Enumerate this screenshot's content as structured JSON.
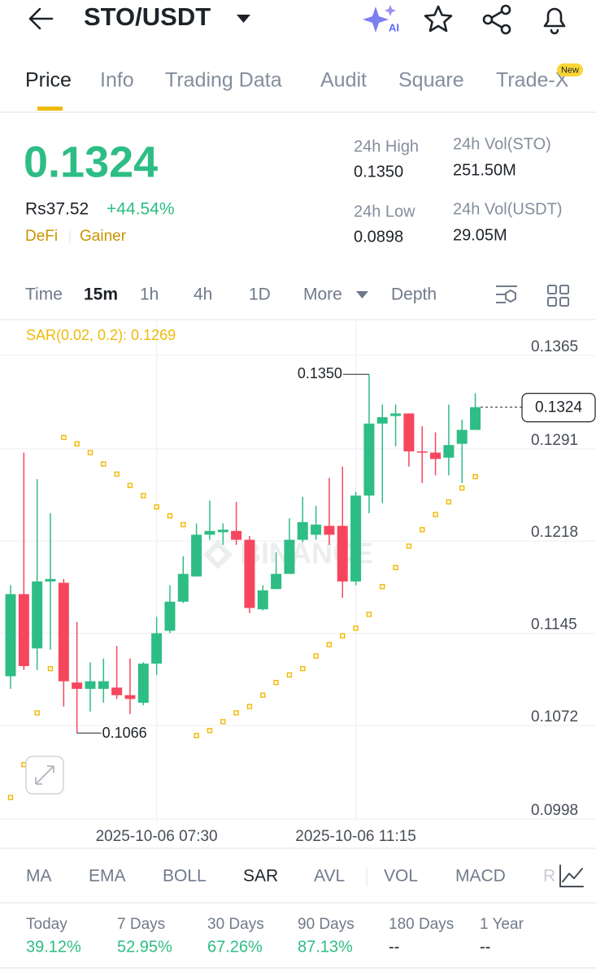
{
  "header": {
    "pair": "STO/USDT",
    "ai": "AI"
  },
  "tabs": [
    "Price",
    "Info",
    "Trading Data",
    "Audit",
    "Square",
    "Trade-X"
  ],
  "badge": "New",
  "ticker": {
    "price": "0.1324",
    "fiat": "Rs37.52",
    "change": "+44.54%",
    "tags": [
      "DeFi",
      "Gainer"
    ],
    "stats": [
      {
        "label": "24h High",
        "value": "0.1350"
      },
      {
        "label": "24h Vol(STO)",
        "value": "251.50M"
      },
      {
        "label": "24h Low",
        "value": "0.0898"
      },
      {
        "label": "24h Vol(USDT)",
        "value": "29.05M"
      }
    ]
  },
  "intervals": [
    "Time",
    "15m",
    "1h",
    "4h",
    "1D",
    "More",
    "Depth"
  ],
  "chart_data": {
    "type": "candlestick",
    "watermark": "BINANCE",
    "categories": [
      null,
      null,
      null,
      null,
      null,
      null,
      null,
      null,
      null,
      null,
      null,
      "2025-10-06 07:30",
      null,
      null,
      null,
      null,
      null,
      null,
      null,
      null,
      null,
      null,
      null,
      null,
      null,
      null,
      "2025-10-06 11:15",
      null,
      null,
      null,
      null,
      null,
      null,
      null,
      null,
      null
    ],
    "open": [
      0.1111,
      0.1176,
      0.1133,
      0.1186,
      0.1185,
      0.1106,
      0.1101,
      0.1101,
      0.1102,
      0.1096,
      0.109,
      0.1121,
      0.1147,
      0.117,
      0.119,
      0.1223,
      0.1225,
      0.1226,
      0.1219,
      0.1164,
      0.118,
      0.1192,
      0.1219,
      0.1223,
      0.123,
      0.123,
      0.1186,
      0.1254,
      0.1311,
      0.1317,
      0.1319,
      0.1289,
      0.1288,
      0.1284,
      0.1295,
      0.1306
    ],
    "high": [
      0.1183,
      0.1288,
      0.1267,
      0.124,
      0.1188,
      0.1154,
      0.1122,
      0.1125,
      0.1135,
      0.1125,
      0.1122,
      0.1158,
      0.1183,
      0.1206,
      0.1232,
      0.125,
      0.1232,
      0.1249,
      0.1222,
      0.1183,
      0.1209,
      0.1236,
      0.1253,
      0.1246,
      0.1268,
      0.1277,
      0.1257,
      0.135,
      0.1326,
      0.1326,
      0.1319,
      0.1309,
      0.1304,
      0.1326,
      0.1314,
      0.1335
    ],
    "low": [
      0.1101,
      0.1116,
      0.1116,
      0.1132,
      0.1087,
      0.1066,
      0.1083,
      0.109,
      0.1093,
      0.1081,
      0.1088,
      0.1112,
      0.1145,
      0.1169,
      0.119,
      0.1219,
      0.1215,
      0.1215,
      0.1161,
      0.1163,
      0.118,
      0.1192,
      0.1217,
      0.1219,
      0.1215,
      0.1173,
      0.1183,
      0.124,
      0.1248,
      0.1293,
      0.1277,
      0.1264,
      0.127,
      0.127,
      0.1264,
      0.1306
    ],
    "close": [
      0.1176,
      0.1119,
      0.1186,
      0.1188,
      0.1107,
      0.1101,
      0.1107,
      0.1107,
      0.1096,
      0.1093,
      0.1121,
      0.1145,
      0.117,
      0.1192,
      0.1223,
      0.1226,
      0.1227,
      0.1219,
      0.1165,
      0.1179,
      0.1192,
      0.1219,
      0.1233,
      0.1231,
      0.1223,
      0.1186,
      0.1254,
      0.1311,
      0.1316,
      0.1319,
      0.1289,
      0.1288,
      0.1283,
      0.1294,
      0.1306,
      0.1324
    ],
    "up_color": "#2ebd85",
    "down_color": "#f6465d",
    "sar": {
      "label": "SAR(0.02, 0.2): 0.1269",
      "color": "#f0b90b",
      "values": [
        0.1015,
        0.1041,
        0.1082,
        0.1117,
        0.13,
        0.1295,
        0.1288,
        0.1279,
        0.1271,
        0.1262,
        0.1254,
        0.1245,
        0.1238,
        0.1231,
        0.1064,
        0.1068,
        0.1075,
        0.1082,
        0.1087,
        0.1096,
        0.1106,
        0.1112,
        0.1117,
        0.1127,
        0.1136,
        0.1143,
        0.1149,
        0.116,
        0.1182,
        0.1197,
        0.1214,
        0.1227,
        0.1239,
        0.1249,
        0.126,
        0.1269
      ]
    },
    "annotations": [
      "0.1350",
      "0.1066"
    ],
    "ylim": [
      0.0996,
      0.1392
    ],
    "yticks": [
      0.1365,
      0.1291,
      0.1218,
      0.1145,
      0.1072,
      0.0998
    ],
    "grid": true
  },
  "indicators": [
    "MA",
    "EMA",
    "BOLL",
    "SAR",
    "AVL",
    "VOL",
    "MACD",
    "R"
  ],
  "performance": [
    {
      "label": "Today",
      "value": "39.12%"
    },
    {
      "label": "7 Days",
      "value": "52.95%"
    },
    {
      "label": "30 Days",
      "value": "67.26%"
    },
    {
      "label": "90 Days",
      "value": "87.13%"
    },
    {
      "label": "180 Days",
      "value": "--"
    },
    {
      "label": "1 Year",
      "value": "--"
    }
  ]
}
